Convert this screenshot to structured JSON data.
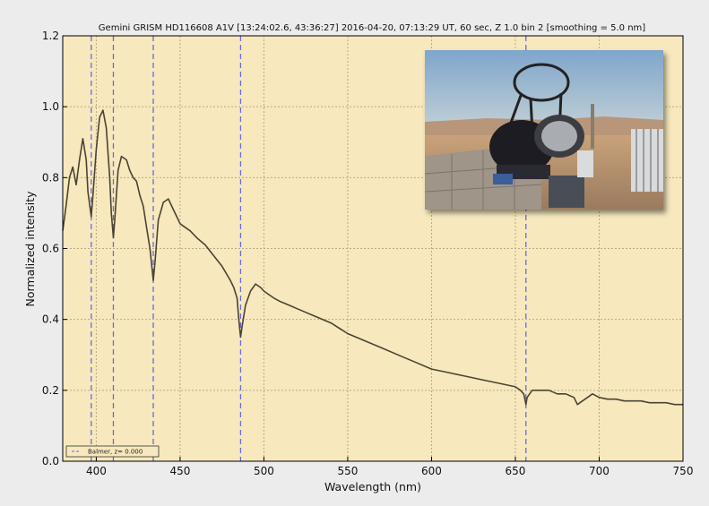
{
  "chart_data": {
    "type": "line",
    "title": "Gemini GRISM HD116608 A1V [13:24:02.6, 43:36:27] 2016-04-20, 07:13:29 UT, 60 sec, Z 1.0 bin 2 [smoothing = 5.0 nm]",
    "xlabel": "Wavelength (nm)",
    "ylabel": "Normalized intensity",
    "xlim": [
      380,
      750
    ],
    "ylim": [
      0.0,
      1.2
    ],
    "x_ticks": [
      "400",
      "450",
      "500",
      "550",
      "600",
      "650",
      "700",
      "750"
    ],
    "y_ticks": [
      "0.0",
      "0.2",
      "0.4",
      "0.6",
      "0.8",
      "1.0",
      "1.2"
    ],
    "grid": true,
    "legend_position": "bottom-left",
    "legend_label": "Balmer, z= 0.000",
    "line_color": "#4a4433",
    "marker_color": "#6a6ae0",
    "plot_bg": "#f7e8bd",
    "balmer_lines_nm": [
      397.0,
      410.2,
      434.0,
      486.1,
      656.3
    ],
    "series": [
      {
        "x": [
          380,
          382,
          384,
          386,
          388,
          390,
          392,
          394,
          395,
          397,
          398,
          400,
          402,
          404,
          406,
          408,
          409,
          410.2,
          411,
          413,
          415,
          418,
          420,
          422,
          424,
          426,
          428,
          430,
          432,
          434,
          435,
          437,
          440,
          443,
          446,
          448,
          450,
          453,
          456,
          460,
          465,
          470,
          475,
          480,
          482,
          484,
          485,
          486.1,
          487,
          489,
          492,
          495,
          498,
          500,
          503,
          506,
          510,
          515,
          520,
          525,
          530,
          540,
          550,
          560,
          570,
          580,
          590,
          600,
          610,
          620,
          630,
          640,
          645,
          650,
          653,
          655,
          656.3,
          657,
          660,
          665,
          670,
          675,
          680,
          685,
          687,
          690,
          693,
          696,
          700,
          705,
          710,
          715,
          720,
          725,
          730,
          735,
          740,
          745,
          750
        ],
        "y": [
          0.65,
          0.72,
          0.8,
          0.83,
          0.78,
          0.85,
          0.91,
          0.85,
          0.76,
          0.69,
          0.75,
          0.88,
          0.97,
          0.99,
          0.94,
          0.8,
          0.7,
          0.63,
          0.68,
          0.82,
          0.86,
          0.85,
          0.82,
          0.8,
          0.79,
          0.75,
          0.72,
          0.66,
          0.6,
          0.51,
          0.56,
          0.68,
          0.73,
          0.74,
          0.71,
          0.69,
          0.67,
          0.66,
          0.65,
          0.63,
          0.61,
          0.58,
          0.55,
          0.51,
          0.49,
          0.46,
          0.4,
          0.35,
          0.38,
          0.44,
          0.48,
          0.5,
          0.49,
          0.48,
          0.47,
          0.46,
          0.45,
          0.44,
          0.43,
          0.42,
          0.41,
          0.39,
          0.36,
          0.34,
          0.32,
          0.3,
          0.28,
          0.26,
          0.25,
          0.24,
          0.23,
          0.22,
          0.215,
          0.21,
          0.2,
          0.19,
          0.16,
          0.18,
          0.2,
          0.2,
          0.2,
          0.19,
          0.19,
          0.18,
          0.16,
          0.17,
          0.18,
          0.19,
          0.18,
          0.175,
          0.175,
          0.17,
          0.17,
          0.17,
          0.165,
          0.165,
          0.165,
          0.16,
          0.16
        ]
      }
    ]
  },
  "inset_photo": {
    "name": "telescope-photo"
  }
}
